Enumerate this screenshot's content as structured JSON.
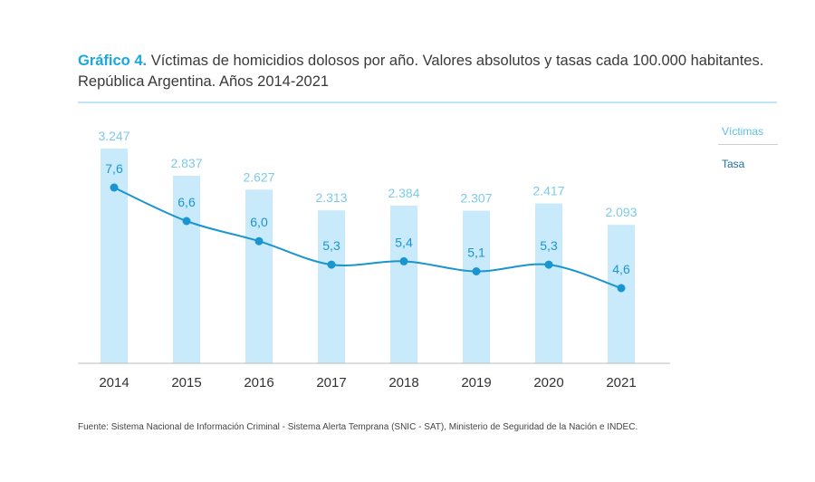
{
  "title": {
    "lead": "Gráfico 4.",
    "rest": " Víctimas de homicidios dolosos por año. Valores absolutos y tasas cada 100.000 habitantes.",
    "line2": "República Argentina. Años 2014-2021"
  },
  "legend": {
    "victimas": "Víctimas",
    "tasa": "Tasa"
  },
  "source": "Fuente: Sistema Nacional de Información Criminal - Sistema Alerta Temprana (SNIC - SAT), Ministerio de Seguridad de la Nación e INDEC.",
  "colors": {
    "bar": "#c8eafb",
    "bar_label": "#7ccbec",
    "line": "#1b95cf",
    "rate_label": "#1b95cf",
    "axis": "#bbbbbb",
    "tick": "#333333"
  },
  "chart_data": {
    "type": "bar",
    "categories": [
      "2014",
      "2015",
      "2016",
      "2017",
      "2018",
      "2019",
      "2020",
      "2021"
    ],
    "series": [
      {
        "name": "Víctimas",
        "type": "bar",
        "values": [
          3247,
          2837,
          2627,
          2313,
          2384,
          2307,
          2417,
          2093
        ],
        "labels": [
          "3.247",
          "2.837",
          "2.627",
          "2.313",
          "2.384",
          "2.307",
          "2.417",
          "2.093"
        ]
      },
      {
        "name": "Tasa",
        "type": "line",
        "values": [
          7.6,
          6.6,
          6.0,
          5.3,
          5.4,
          5.1,
          5.3,
          4.6
        ],
        "labels": [
          "7,6",
          "6,6",
          "6,0",
          "5,3",
          "5,4",
          "5,1",
          "5,3",
          "4,6"
        ]
      }
    ],
    "grid": false,
    "legend_position": "right"
  }
}
